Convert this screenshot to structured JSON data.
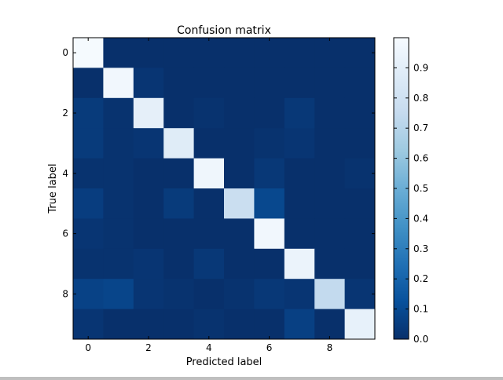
{
  "chart_data": {
    "type": "heatmap",
    "title": "Confusion matrix",
    "xlabel": "Predicted label",
    "ylabel": "True label",
    "x_ticks": [
      "0",
      "2",
      "4",
      "6",
      "8"
    ],
    "y_ticks": [
      "0",
      "2",
      "4",
      "6",
      "8"
    ],
    "x_tick_values": [
      0,
      2,
      4,
      6,
      8
    ],
    "y_tick_values": [
      0,
      2,
      4,
      6,
      8
    ],
    "colorbar_ticks": [
      "0.0",
      "0.1",
      "0.2",
      "0.3",
      "0.4",
      "0.5",
      "0.6",
      "0.7",
      "0.8",
      "0.9"
    ],
    "colorbar_tick_values": [
      0.0,
      0.1,
      0.2,
      0.3,
      0.4,
      0.5,
      0.6,
      0.7,
      0.8,
      0.9
    ],
    "vmin": 0.0,
    "vmax": 1.0,
    "colormap": "Blues",
    "x": [
      0,
      1,
      2,
      3,
      4,
      5,
      6,
      7,
      8,
      9
    ],
    "y": [
      0,
      1,
      2,
      3,
      4,
      5,
      6,
      7,
      8,
      9
    ],
    "z": [
      [
        0.99,
        0.0,
        0.0,
        0.0,
        0.0,
        0.0,
        0.0,
        0.0,
        0.0,
        0.0
      ],
      [
        0.0,
        0.97,
        0.02,
        0.0,
        0.0,
        0.0,
        0.0,
        0.0,
        0.0,
        0.0
      ],
      [
        0.04,
        0.01,
        0.91,
        0.0,
        0.01,
        0.0,
        0.0,
        0.03,
        0.0,
        0.0
      ],
      [
        0.04,
        0.01,
        0.02,
        0.88,
        0.0,
        0.0,
        0.01,
        0.02,
        0.0,
        0.0
      ],
      [
        0.01,
        0.01,
        0.0,
        0.0,
        0.96,
        0.0,
        0.03,
        0.0,
        0.0,
        0.01
      ],
      [
        0.05,
        0.01,
        0.0,
        0.04,
        0.0,
        0.77,
        0.09,
        0.0,
        0.0,
        0.0
      ],
      [
        0.02,
        0.01,
        0.0,
        0.0,
        0.0,
        0.0,
        0.97,
        0.0,
        0.0,
        0.0
      ],
      [
        0.01,
        0.01,
        0.02,
        0.0,
        0.03,
        0.0,
        0.0,
        0.94,
        0.0,
        0.0
      ],
      [
        0.07,
        0.08,
        0.02,
        0.01,
        0.0,
        0.01,
        0.03,
        0.02,
        0.74,
        0.02
      ],
      [
        0.02,
        0.0,
        0.0,
        0.0,
        0.01,
        0.0,
        0.0,
        0.06,
        0.0,
        0.92
      ]
    ]
  }
}
